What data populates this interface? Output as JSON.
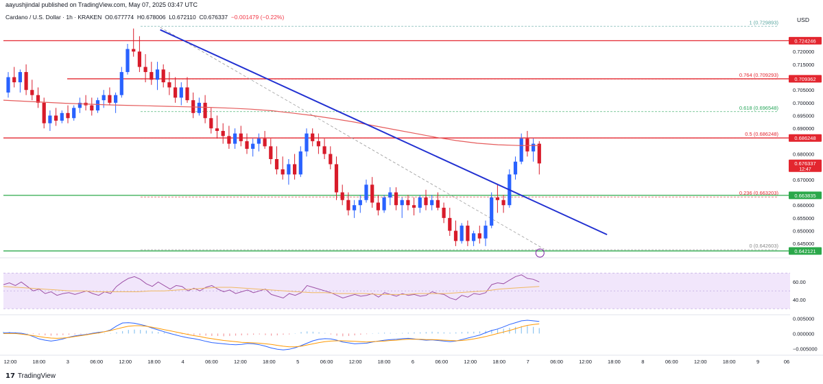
{
  "header": {
    "publisher_line": "aayushjindal published on TradingView.com, May 07, 2025 03:47 UTC"
  },
  "ohlc": {
    "symbol": "Cardano / U.S. Dollar · 1h · KRAKEN",
    "open": "O0.677774",
    "high": "H0.678006",
    "low": "L0.672110",
    "close": "C0.676337",
    "change": "−0.001479 (−0.22%)"
  },
  "currency_label": "USD",
  "logo_text": "TradingView",
  "colors": {
    "up": "#2962ff",
    "down": "#d81b2a",
    "resistance": "#e3262f",
    "support": "#2ba84a",
    "trendline": "#2130d1",
    "ma": "#e55a5a",
    "rsi": "#9c4fa5",
    "rsi_band": "#f1e6fb"
  },
  "chart_data": [
    {
      "type": "candlestick",
      "title": "",
      "ylim": [
        0.6405,
        0.7305
      ],
      "y_ticks": [
        "0.720000",
        "0.715000",
        "0.705000",
        "0.700000",
        "0.695000",
        "0.690000",
        "0.680000",
        "0.670000",
        "0.660000",
        "0.655000",
        "0.650000",
        "0.645000"
      ],
      "x_ticks": [
        "12:00",
        "18:00",
        "3",
        "06:00",
        "12:00",
        "18:00",
        "4",
        "06:00",
        "12:00",
        "18:00",
        "5",
        "06:00",
        "12:00",
        "18:00",
        "6",
        "06:00",
        "12:00",
        "18:00",
        "7",
        "06:00",
        "12:00",
        "18:00",
        "8",
        "06:00",
        "12:00",
        "18:00",
        "9",
        "06"
      ],
      "price_badges": [
        {
          "label": "0.724246",
          "value": 0.724246,
          "color": "#e3262f"
        },
        {
          "label": "0.709362",
          "value": 0.709362,
          "color": "#e3262f"
        },
        {
          "label": "0.686248",
          "value": 0.686248,
          "color": "#e3262f"
        },
        {
          "label": "0.676337",
          "value": 0.676337,
          "color": "#e3262f",
          "sub": "12:47"
        },
        {
          "label": "0.663835",
          "value": 0.663835,
          "color": "#2ba84a"
        },
        {
          "label": "0.642121",
          "value": 0.642121,
          "color": "#2ba84a"
        }
      ],
      "horizontal_levels": [
        {
          "value": 0.724246,
          "kind": "resistance",
          "from": "start"
        },
        {
          "value": 0.709362,
          "kind": "resistance",
          "from": "mid"
        },
        {
          "value": 0.686248,
          "kind": "resistance",
          "from": "start"
        },
        {
          "value": 0.663835,
          "kind": "support",
          "from": "start"
        },
        {
          "value": 0.642121,
          "kind": "support",
          "from": "start"
        }
      ],
      "fib_levels": [
        {
          "label": "1 (0.729893)",
          "value": 0.729893,
          "color": "#5aa6a0"
        },
        {
          "label": "0.764 (0.709293)",
          "value": 0.709293,
          "color": "#e3262f"
        },
        {
          "label": "0.618 (0.696548)",
          "value": 0.696548,
          "color": "#27a65a"
        },
        {
          "label": "0.5 (0.686248)",
          "value": 0.686248,
          "color": "#e3262f"
        },
        {
          "label": "0.236 (0.663203)",
          "value": 0.663203,
          "color": "#e3262f"
        },
        {
          "label": "0 (0.642603)",
          "value": 0.642603,
          "color": "#888888"
        }
      ],
      "trendline": {
        "from": [
          0.2,
          0.7285
        ],
        "to": [
          0.77,
          0.6485
        ]
      },
      "fib_diagonal": {
        "from": [
          0.2,
          0.7295
        ],
        "to": [
          0.69,
          0.6428
        ]
      },
      "candles": [
        [
          0.704,
          0.712,
          0.702,
          0.71
        ],
        [
          0.71,
          0.714,
          0.706,
          0.708
        ],
        [
          0.708,
          0.713,
          0.704,
          0.712
        ],
        [
          0.712,
          0.715,
          0.703,
          0.705
        ],
        [
          0.705,
          0.709,
          0.701,
          0.703
        ],
        [
          0.703,
          0.706,
          0.698,
          0.7
        ],
        [
          0.7,
          0.702,
          0.69,
          0.692
        ],
        [
          0.692,
          0.697,
          0.689,
          0.695
        ],
        [
          0.695,
          0.698,
          0.691,
          0.693
        ],
        [
          0.693,
          0.697,
          0.692,
          0.696
        ],
        [
          0.696,
          0.699,
          0.692,
          0.694
        ],
        [
          0.694,
          0.699,
          0.693,
          0.698
        ],
        [
          0.698,
          0.702,
          0.696,
          0.7
        ],
        [
          0.7,
          0.703,
          0.697,
          0.699
        ],
        [
          0.699,
          0.702,
          0.695,
          0.697
        ],
        [
          0.697,
          0.702,
          0.696,
          0.701
        ],
        [
          0.701,
          0.705,
          0.698,
          0.703
        ],
        [
          0.703,
          0.706,
          0.699,
          0.7
        ],
        [
          0.7,
          0.704,
          0.696,
          0.703
        ],
        [
          0.703,
          0.714,
          0.702,
          0.712
        ],
        [
          0.712,
          0.723,
          0.711,
          0.721
        ],
        [
          0.721,
          0.729,
          0.718,
          0.72
        ],
        [
          0.72,
          0.726,
          0.712,
          0.714
        ],
        [
          0.714,
          0.719,
          0.708,
          0.712
        ],
        [
          0.712,
          0.716,
          0.707,
          0.709
        ],
        [
          0.709,
          0.716,
          0.705,
          0.713
        ],
        [
          0.713,
          0.715,
          0.706,
          0.708
        ],
        [
          0.708,
          0.712,
          0.703,
          0.706
        ],
        [
          0.706,
          0.71,
          0.7,
          0.702
        ],
        [
          0.702,
          0.708,
          0.699,
          0.706
        ],
        [
          0.706,
          0.71,
          0.7,
          0.701
        ],
        [
          0.701,
          0.704,
          0.694,
          0.696
        ],
        [
          0.696,
          0.702,
          0.695,
          0.7
        ],
        [
          0.7,
          0.703,
          0.692,
          0.694
        ],
        [
          0.694,
          0.698,
          0.688,
          0.69
        ],
        [
          0.69,
          0.695,
          0.686,
          0.689
        ],
        [
          0.689,
          0.692,
          0.684,
          0.687
        ],
        [
          0.687,
          0.691,
          0.682,
          0.684
        ],
        [
          0.684,
          0.69,
          0.682,
          0.688
        ],
        [
          0.688,
          0.691,
          0.683,
          0.685
        ],
        [
          0.685,
          0.688,
          0.68,
          0.682
        ],
        [
          0.682,
          0.686,
          0.679,
          0.684
        ],
        [
          0.684,
          0.688,
          0.681,
          0.686
        ],
        [
          0.686,
          0.689,
          0.682,
          0.683
        ],
        [
          0.683,
          0.686,
          0.676,
          0.678
        ],
        [
          0.678,
          0.683,
          0.672,
          0.674
        ],
        [
          0.674,
          0.679,
          0.67,
          0.672
        ],
        [
          0.672,
          0.678,
          0.668,
          0.676
        ],
        [
          0.676,
          0.68,
          0.67,
          0.672
        ],
        [
          0.672,
          0.683,
          0.671,
          0.681
        ],
        [
          0.681,
          0.69,
          0.679,
          0.688
        ],
        [
          0.688,
          0.69,
          0.683,
          0.685
        ],
        [
          0.685,
          0.688,
          0.68,
          0.683
        ],
        [
          0.683,
          0.686,
          0.678,
          0.68
        ],
        [
          0.68,
          0.683,
          0.674,
          0.676
        ],
        [
          0.676,
          0.679,
          0.662,
          0.665
        ],
        [
          0.665,
          0.668,
          0.66,
          0.662
        ],
        [
          0.662,
          0.665,
          0.656,
          0.658
        ],
        [
          0.658,
          0.662,
          0.655,
          0.66
        ],
        [
          0.66,
          0.664,
          0.657,
          0.662
        ],
        [
          0.662,
          0.67,
          0.661,
          0.668
        ],
        [
          0.668,
          0.671,
          0.659,
          0.661
        ],
        [
          0.661,
          0.664,
          0.656,
          0.658
        ],
        [
          0.658,
          0.664,
          0.657,
          0.663
        ],
        [
          0.663,
          0.667,
          0.66,
          0.665
        ],
        [
          0.665,
          0.667,
          0.658,
          0.66
        ],
        [
          0.66,
          0.663,
          0.655,
          0.662
        ],
        [
          0.662,
          0.664,
          0.658,
          0.66
        ],
        [
          0.66,
          0.663,
          0.656,
          0.659
        ],
        [
          0.659,
          0.664,
          0.657,
          0.663
        ],
        [
          0.663,
          0.666,
          0.658,
          0.66
        ],
        [
          0.66,
          0.664,
          0.658,
          0.662
        ],
        [
          0.662,
          0.665,
          0.658,
          0.659
        ],
        [
          0.659,
          0.661,
          0.653,
          0.655
        ],
        [
          0.655,
          0.659,
          0.648,
          0.65
        ],
        [
          0.65,
          0.654,
          0.644,
          0.646
        ],
        [
          0.646,
          0.653,
          0.645,
          0.652
        ],
        [
          0.652,
          0.654,
          0.644,
          0.646
        ],
        [
          0.646,
          0.65,
          0.644,
          0.649
        ],
        [
          0.649,
          0.652,
          0.645,
          0.647
        ],
        [
          0.647,
          0.654,
          0.644,
          0.652
        ],
        [
          0.652,
          0.665,
          0.651,
          0.663
        ],
        [
          0.663,
          0.668,
          0.657,
          0.662
        ],
        [
          0.662,
          0.664,
          0.657,
          0.66
        ],
        [
          0.66,
          0.674,
          0.659,
          0.672
        ],
        [
          0.672,
          0.679,
          0.67,
          0.677
        ],
        [
          0.677,
          0.688,
          0.676,
          0.686
        ],
        [
          0.686,
          0.689,
          0.679,
          0.681
        ],
        [
          0.681,
          0.686,
          0.677,
          0.684
        ],
        [
          0.684,
          0.685,
          0.672,
          0.6763
        ]
      ],
      "ma_series": [
        0.701,
        0.7006,
        0.7002,
        0.6998,
        0.6995,
        0.6992,
        0.699,
        0.6988,
        0.6986,
        0.6984,
        0.6982,
        0.6979,
        0.6975,
        0.6969,
        0.696,
        0.695,
        0.6938,
        0.6925,
        0.691,
        0.6895,
        0.688,
        0.6865,
        0.6852,
        0.6842,
        0.6836,
        0.6833,
        0.6833
      ]
    },
    {
      "type": "line",
      "title": "",
      "ylim": [
        24,
        84
      ],
      "y_ticks": [
        "60.00",
        "40.00"
      ],
      "band": [
        30,
        70
      ],
      "rsi_series": [
        57,
        59,
        56,
        60,
        55,
        50,
        52,
        47,
        49,
        45,
        47,
        48,
        46,
        48,
        50,
        47,
        45,
        49,
        47,
        55,
        60,
        64,
        66,
        63,
        58,
        55,
        60,
        56,
        52,
        56,
        55,
        50,
        53,
        50,
        54,
        56,
        52,
        49,
        51,
        47,
        49,
        51,
        48,
        50,
        52,
        46,
        44,
        42,
        47,
        45,
        48,
        56,
        54,
        52,
        50,
        48,
        45,
        42,
        44,
        46,
        44,
        45,
        47,
        43,
        48,
        46,
        44,
        47,
        45,
        46,
        44,
        45,
        49,
        47,
        46,
        42,
        40,
        45,
        43,
        47,
        46,
        48,
        57,
        59,
        58,
        62,
        66,
        68,
        64,
        63,
        60
      ],
      "signal_series": [
        55,
        54,
        53,
        52,
        51,
        50,
        50,
        49,
        49,
        49,
        49,
        50,
        50,
        51,
        52,
        53,
        54,
        54,
        53,
        52,
        51,
        50,
        49,
        48,
        48,
        47,
        47,
        47,
        46,
        46,
        46,
        47,
        47,
        47,
        48,
        49,
        50,
        52,
        53,
        54,
        55
      ]
    },
    {
      "type": "bar",
      "title": "",
      "ylim": [
        -0.0065,
        0.006
      ],
      "y_ticks": [
        "0.005000",
        "0.000000",
        "−0.005000"
      ],
      "hist_series": [
        0.0006,
        0.0005,
        0.0004,
        0.0002,
        0.0001,
        -0.0002,
        -0.0004,
        -0.0006,
        -0.0007,
        -0.0006,
        -0.0005,
        -0.0004,
        -0.0003,
        -0.0002,
        -0.0002,
        -0.0001,
        0,
        0.0001,
        0.0001,
        0.0004,
        0.0008,
        0.0012,
        0.0013,
        0.0012,
        0.001,
        0.0007,
        0.0005,
        0.0004,
        0.0002,
        0,
        -0.0002,
        -0.0004,
        -0.0005,
        -0.0006,
        -0.0007,
        -0.0008,
        -0.0008,
        -0.0009,
        -0.0008,
        -0.0007,
        -0.0006,
        -0.0005,
        -0.0004,
        -0.0003,
        -0.0005,
        -0.0007,
        -0.0006,
        -0.0004,
        -0.0003,
        0.0001,
        0.0005,
        0.0007,
        0.0006,
        0.0004,
        0.0002,
        -0.0003,
        -0.0007,
        -0.0009,
        -0.0008,
        -0.0006,
        -0.0004,
        -0.0002,
        0,
        0.0002,
        0.0003,
        0.0002,
        0.0001,
        0.0002,
        0.0003,
        0.0004,
        0.0004,
        0.0005,
        0.0006,
        0.0005,
        0.0004,
        0.0003,
        0.0004,
        0.0005,
        0.0006,
        0.0006,
        0.0007,
        0.0009,
        0.0012,
        0.0014,
        0.0016,
        0.0019,
        0.0022,
        0.0024,
        0.0025,
        0.0022,
        0.0018
      ],
      "macd_series": [
        0.0002,
        0.0003,
        0.0002,
        0.0001,
        -0.0003,
        -0.001,
        -0.0018,
        -0.0022,
        -0.0025,
        -0.0022,
        -0.0018,
        -0.0012,
        -0.0008,
        -0.0005,
        -0.0003,
        0.0001,
        0.0004,
        0.0006,
        0.0012,
        0.0025,
        0.0035,
        0.0036,
        0.0034,
        0.003,
        0.0025,
        0.0018,
        0.0012,
        0.0006,
        0,
        -0.0005,
        -0.001,
        -0.0014,
        -0.0017,
        -0.0021,
        -0.0026,
        -0.003,
        -0.0032,
        -0.0034,
        -0.0036,
        -0.0037,
        -0.0036,
        -0.0033,
        -0.0034,
        -0.0037,
        -0.0042,
        -0.0048,
        -0.0052,
        -0.0054,
        -0.0052,
        -0.0047,
        -0.004,
        -0.0032,
        -0.0024,
        -0.0019,
        -0.0017,
        -0.0018,
        -0.0022,
        -0.0028,
        -0.0031,
        -0.0034,
        -0.0033,
        -0.0032,
        -0.0028,
        -0.0025,
        -0.0022,
        -0.002,
        -0.0019,
        -0.0017,
        -0.0016,
        -0.0018,
        -0.002,
        -0.0022,
        -0.0021,
        -0.0023,
        -0.0025,
        -0.0027,
        -0.0025,
        -0.002,
        -0.0015,
        -0.001,
        -0.0005,
        0.0003,
        0.001,
        0.0015,
        0.0022,
        0.003,
        0.0036,
        0.0042,
        0.0044,
        0.0042,
        0.004
      ],
      "macd_signal_series": [
        0,
        0,
        0,
        -0.0002,
        -0.0004,
        -0.0007,
        -0.001,
        -0.0013,
        -0.0015,
        -0.0016,
        -0.0015,
        -0.0013,
        -0.001,
        -0.0007,
        -0.0004,
        -0.0001,
        0.0002,
        0.0006,
        0.001,
        0.0015,
        0.002,
        0.0024,
        0.0026,
        0.0026,
        0.0024,
        0.0021,
        0.0017,
        0.0013,
        0.0009,
        0.0005,
        0.0001,
        -0.0003,
        -0.0007,
        -0.001,
        -0.0014,
        -0.0017,
        -0.002,
        -0.0023,
        -0.0025,
        -0.0027,
        -0.0029,
        -0.003,
        -0.0031,
        -0.0032,
        -0.0034,
        -0.0036,
        -0.0039,
        -0.0042,
        -0.0044,
        -0.0044,
        -0.0042,
        -0.0038,
        -0.0034,
        -0.003,
        -0.0027,
        -0.0025,
        -0.0024,
        -0.0024,
        -0.0025,
        -0.0026,
        -0.0027,
        -0.0028,
        -0.0027,
        -0.0026,
        -0.0025,
        -0.0023,
        -0.0022,
        -0.002,
        -0.0019,
        -0.0019,
        -0.0019,
        -0.002,
        -0.002,
        -0.0021,
        -0.0022,
        -0.0023,
        -0.0024,
        -0.0023,
        -0.0021,
        -0.0018,
        -0.0014,
        -0.001,
        -0.0005,
        0,
        0.0005,
        0.001,
        0.0016,
        0.0022,
        0.0027,
        0.003,
        0.0032
      ]
    }
  ]
}
